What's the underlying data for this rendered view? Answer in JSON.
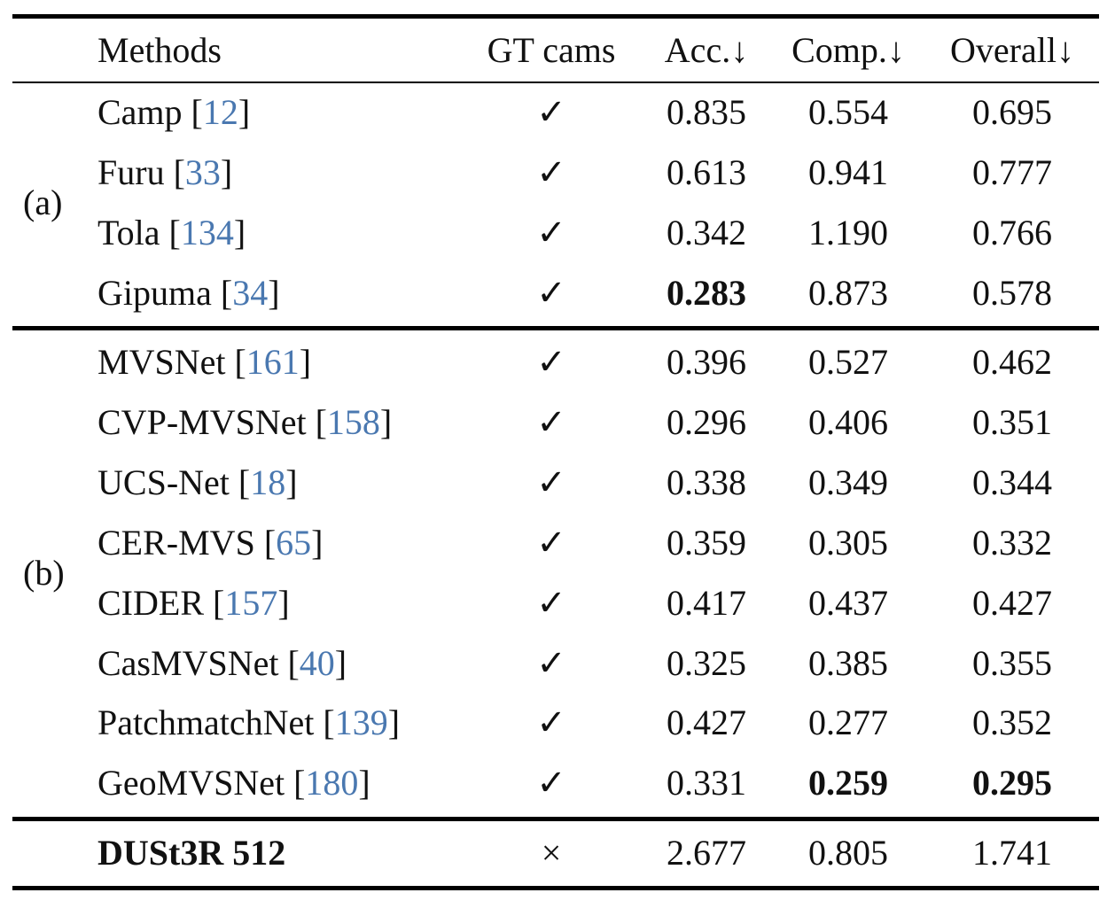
{
  "table": {
    "columns": [
      "Methods",
      "GT cams",
      "Acc.↓",
      "Comp.↓",
      "Overall↓"
    ],
    "groups": [
      {
        "label": "(a)",
        "rows": [
          {
            "method": "Camp [12]",
            "gt_cams": "✓",
            "acc": "0.835",
            "comp": "0.554",
            "overall": "0.695"
          },
          {
            "method": "Furu [33]",
            "gt_cams": "✓",
            "acc": "0.613",
            "comp": "0.941",
            "overall": "0.777"
          },
          {
            "method": "Tola [134]",
            "gt_cams": "✓",
            "acc": "0.342",
            "comp": "1.190",
            "overall": "0.766"
          },
          {
            "method": "Gipuma [34]",
            "gt_cams": "✓",
            "acc": "0.283",
            "comp": "0.873",
            "overall": "0.578",
            "bold": [
              "acc"
            ]
          }
        ]
      },
      {
        "label": "(b)",
        "rows": [
          {
            "method": "MVSNet [161]",
            "gt_cams": "✓",
            "acc": "0.396",
            "comp": "0.527",
            "overall": "0.462"
          },
          {
            "method": "CVP-MVSNet [158]",
            "gt_cams": "✓",
            "acc": "0.296",
            "comp": "0.406",
            "overall": "0.351"
          },
          {
            "method": "UCS-Net [18]",
            "gt_cams": "✓",
            "acc": "0.338",
            "comp": "0.349",
            "overall": "0.344"
          },
          {
            "method": "CER-MVS [65]",
            "gt_cams": "✓",
            "acc": "0.359",
            "comp": "0.305",
            "overall": "0.332"
          },
          {
            "method": "CIDER [157]",
            "gt_cams": "✓",
            "acc": "0.417",
            "comp": "0.437",
            "overall": "0.427"
          },
          {
            "method": "CasMVSNet [40]",
            "gt_cams": "✓",
            "acc": "0.325",
            "comp": "0.385",
            "overall": "0.355"
          },
          {
            "method": "PatchmatchNet [139]",
            "gt_cams": "✓",
            "acc": "0.427",
            "comp": "0.277",
            "overall": "0.352"
          },
          {
            "method": "GeoMVSNet [180]",
            "gt_cams": "✓",
            "acc": "0.331",
            "comp": "0.259",
            "overall": "0.295",
            "bold": [
              "comp",
              "overall"
            ]
          }
        ]
      },
      {
        "rows": [
          {
            "method": "DUSt3R 512",
            "gt_cams": "×",
            "acc": "2.677",
            "comp": "0.805",
            "overall": "1.741",
            "bold": [
              "method"
            ]
          }
        ]
      }
    ]
  }
}
